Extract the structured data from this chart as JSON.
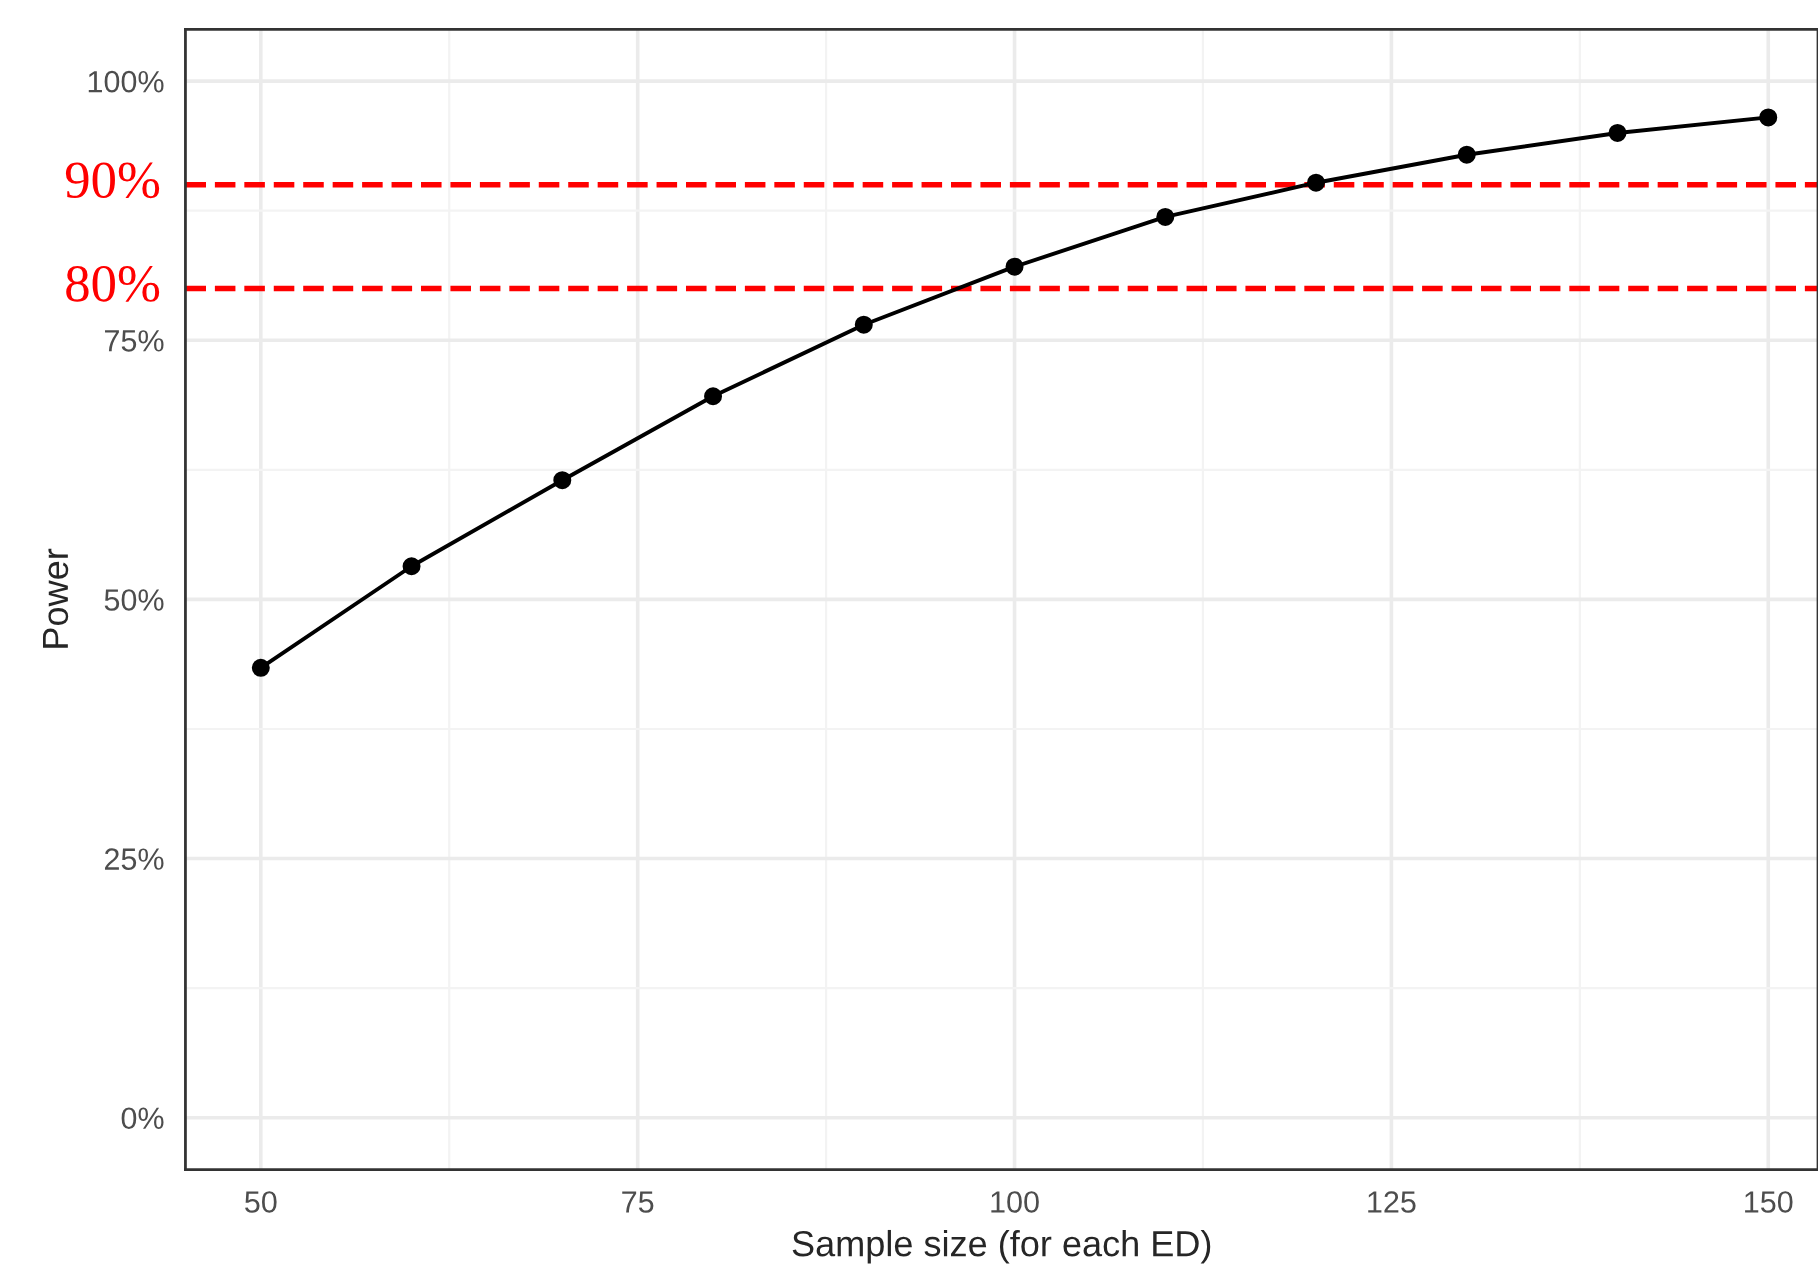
{
  "chart_data": {
    "type": "line",
    "xlabel": "Sample size (for each ED)",
    "ylabel": "Power",
    "x": [
      50,
      60,
      70,
      80,
      90,
      100,
      110,
      120,
      130,
      140,
      150
    ],
    "series": [
      {
        "color": "#000000",
        "values": [
          43.4,
          53.2,
          61.5,
          69.6,
          76.5,
          82.1,
          86.9,
          90.2,
          92.9,
          95.0,
          96.5
        ]
      }
    ],
    "marker": "circle",
    "line_style": "solid",
    "xlim": [
      45,
      153.3
    ],
    "xticks": [
      50,
      75,
      100,
      125,
      150
    ],
    "ylim": [
      -5,
      105
    ],
    "yticks": [
      {
        "value": 0,
        "label": "0%"
      },
      {
        "value": 25,
        "label": "25%"
      },
      {
        "value": 50,
        "label": "50%"
      },
      {
        "value": 75,
        "label": "75%"
      },
      {
        "value": 100,
        "label": "100%"
      }
    ],
    "ref_lines": [
      {
        "axis": "y",
        "value": 90,
        "label": "90%",
        "color": "#ff0000",
        "line_style": "dashed"
      },
      {
        "axis": "y",
        "value": 80,
        "label": "80%",
        "color": "#ff0000",
        "line_style": "dashed"
      }
    ],
    "grid": true
  }
}
